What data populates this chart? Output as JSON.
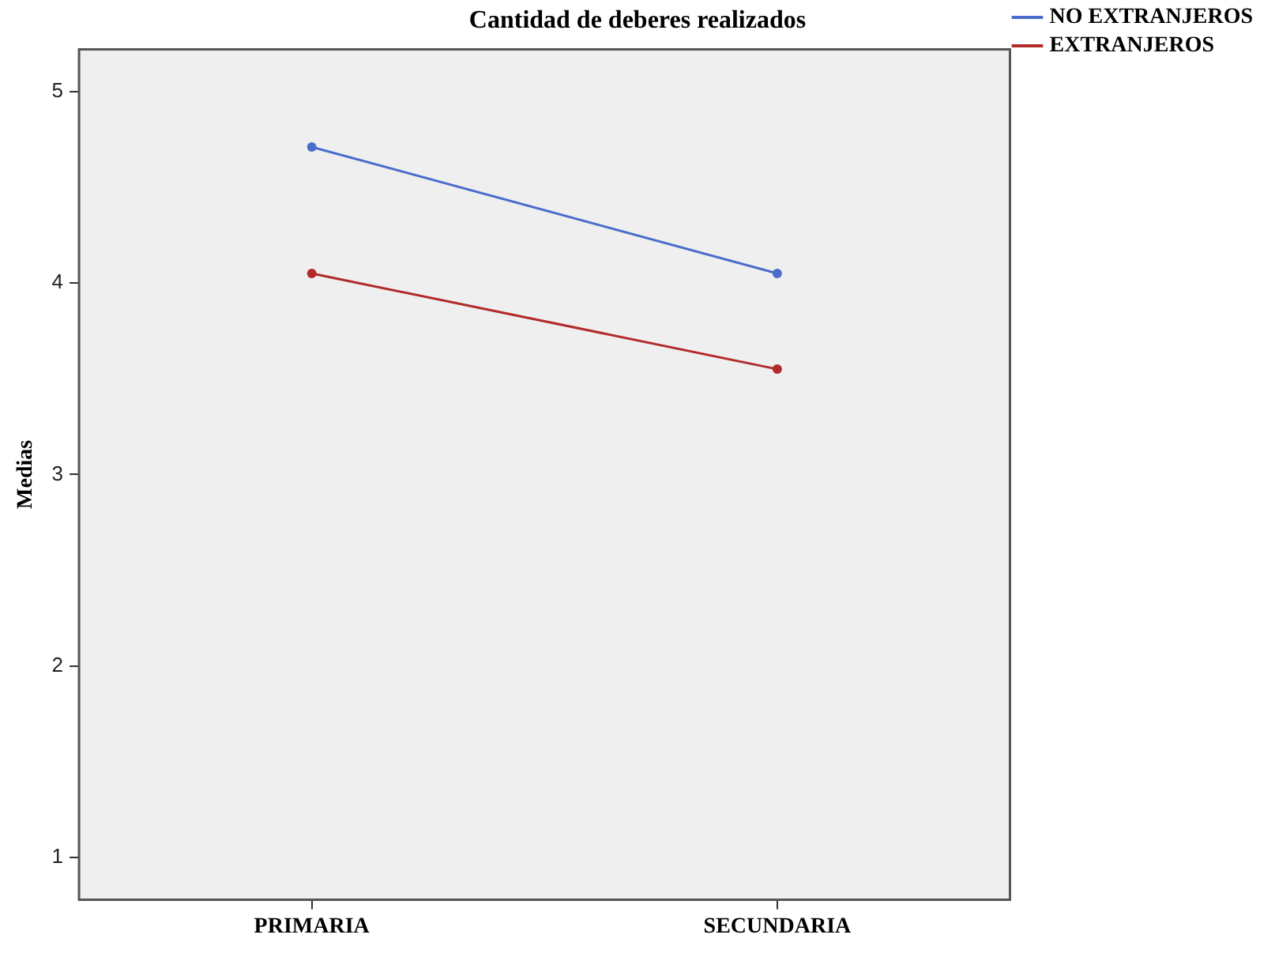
{
  "chart_data": {
    "type": "line",
    "title": "Cantidad de deberes realizados",
    "ylabel": "Medias",
    "categories": [
      "PRIMARIA",
      "SECUNDARIA"
    ],
    "series": [
      {
        "name": "NO EXTRANJEROS",
        "color": "#4a6ccb",
        "values": [
          4.71,
          4.05
        ]
      },
      {
        "name": "EXTRANJEROS",
        "color": "#b22a2a",
        "values": [
          4.05,
          3.55
        ]
      }
    ],
    "ylim": [
      0.78,
      5.22
    ],
    "yticks": [
      1,
      2,
      3,
      4,
      5
    ],
    "grid": false,
    "legend": "top right",
    "marker": "circle",
    "line_style": "solid"
  }
}
